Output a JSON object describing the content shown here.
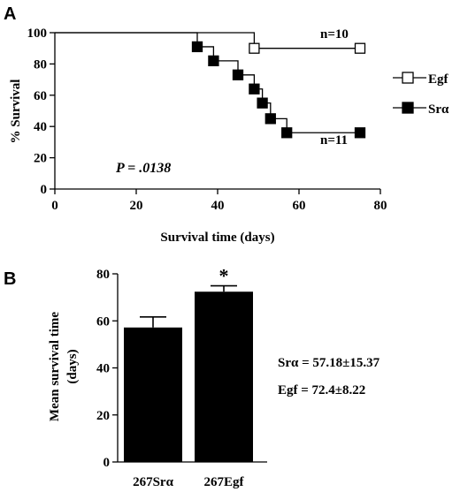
{
  "chart_data": [
    {
      "panel_label": "A",
      "type": "line",
      "subtype": "kaplan-meier-step",
      "xlabel": "Survival time (days)",
      "ylabel": "% Survival",
      "xlim": [
        0,
        80
      ],
      "ylim": [
        0,
        100
      ],
      "xticks": [
        0,
        20,
        40,
        60,
        80
      ],
      "yticks": [
        0,
        20,
        40,
        60,
        80,
        100
      ],
      "annotation_p": "P = .0138",
      "legend_position": "right",
      "series": [
        {
          "name": "Egf",
          "marker": "open-square",
          "n_label": "n=10",
          "steps": [
            [
              0,
              100
            ],
            [
              49,
              90
            ],
            [
              75,
              90
            ]
          ],
          "markers": [
            [
              49,
              90
            ],
            [
              75,
              90
            ]
          ]
        },
        {
          "name": "Srα",
          "marker": "filled-square",
          "n_label": "n=11",
          "steps": [
            [
              0,
              100
            ],
            [
              35,
              91
            ],
            [
              39,
              82
            ],
            [
              45,
              73
            ],
            [
              49,
              64
            ],
            [
              51,
              55
            ],
            [
              53,
              45
            ],
            [
              57,
              36
            ],
            [
              75,
              36
            ]
          ],
          "markers": [
            [
              35,
              91
            ],
            [
              39,
              82
            ],
            [
              45,
              73
            ],
            [
              49,
              64
            ],
            [
              51,
              55
            ],
            [
              53,
              45
            ],
            [
              57,
              36
            ],
            [
              75,
              36
            ]
          ]
        }
      ]
    },
    {
      "panel_label": "B",
      "type": "bar",
      "ylabel_line1": "Mean survival time",
      "ylabel_line2": "(days)",
      "ylim": [
        0,
        80
      ],
      "yticks": [
        0,
        20,
        40,
        60,
        80
      ],
      "categories": [
        "267Srα",
        "267Egf"
      ],
      "values": [
        57.18,
        72.4
      ],
      "errors": [
        4.5,
        2.5
      ],
      "significance": [
        "",
        "*"
      ],
      "stats": [
        "Srα = 57.18±15.37",
        "Egf = 72.4±8.22"
      ]
    }
  ]
}
